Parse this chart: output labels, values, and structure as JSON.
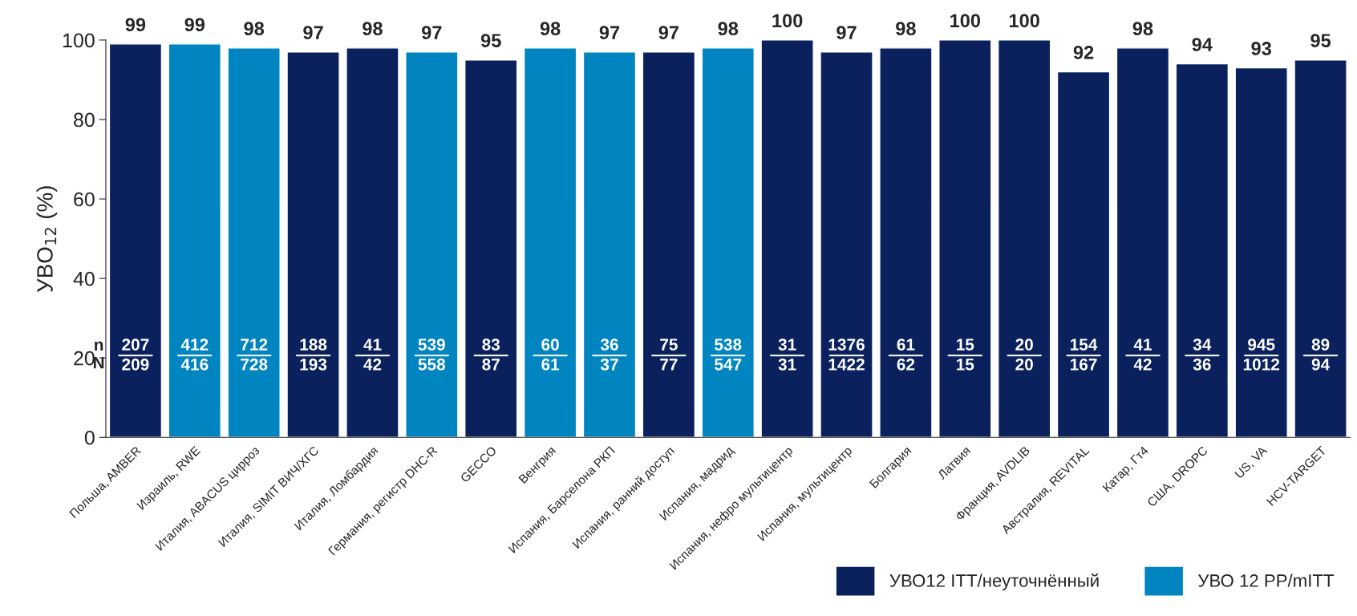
{
  "chart_data": {
    "type": "bar",
    "categories": [
      "Польша, AMBER",
      "Израиль, RWE",
      "Италия, ABACUS цирроз",
      "Италия, SIMIT ВИЧ/ХГС",
      "Италия, Ломбардия",
      "Германия, регистр DHC-R",
      "GECCO",
      "Венгрия",
      "Испания, Барселона РКП",
      "Испания, ранний доступ",
      "Испания, мадрид",
      "Испания, нефро мультицентр",
      "Испания, мультицентр",
      "Болгария",
      "Латвия",
      "Франция, AVDLIB",
      "Австралия, REVITAL",
      "Катар, Гт4",
      "США, DROPC",
      "US, VA",
      "HCV-TARGET"
    ],
    "series": [
      {
        "name": "УВО12 ITT/неуточнённый",
        "color": "#0b215e",
        "values": [
          99,
          null,
          null,
          97,
          98,
          null,
          95,
          null,
          null,
          97,
          null,
          100,
          97,
          98,
          100,
          100,
          92,
          98,
          94,
          93,
          95
        ]
      },
      {
        "name": "УВО 12 PP/mITT",
        "color": "#0085c0",
        "values": [
          null,
          99,
          98,
          null,
          null,
          97,
          null,
          98,
          97,
          null,
          98,
          null,
          null,
          null,
          null,
          null,
          null,
          null,
          null,
          null,
          null
        ]
      }
    ],
    "ylabel": "УВО$_{12}$ (%)",
    "ylim": [
      0,
      100
    ],
    "yticks": [
      0,
      20,
      40,
      60,
      80,
      100
    ],
    "data_labels": true,
    "legend": "bottom right",
    "annotations": [
      "n",
      "N",
      "207",
      "209",
      "412",
      "416",
      "712",
      "728",
      "188",
      "193",
      "41",
      "42",
      "539",
      "558",
      "83",
      "87",
      "60",
      "61",
      "36",
      "37",
      "75",
      "77",
      "538",
      "547",
      "31",
      "31",
      "1376",
      "1422",
      "61",
      "62",
      "15",
      "15",
      "20",
      "20",
      "154",
      "167",
      "41",
      "42",
      "34",
      "36",
      "945",
      "1012",
      "89",
      "94"
    ]
  }
}
